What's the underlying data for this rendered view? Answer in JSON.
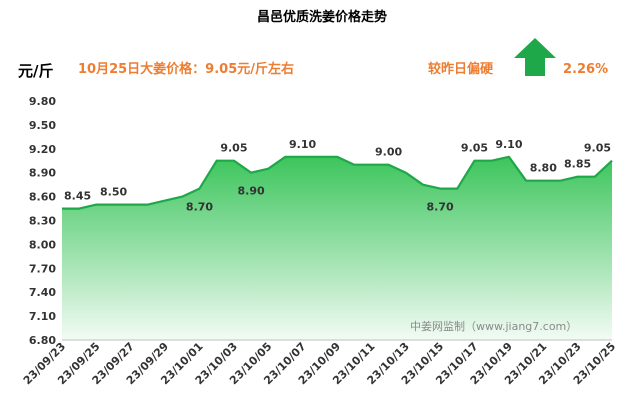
{
  "header": {
    "price_note": "10月25日大姜价格：9.05元/斤左右",
    "compare_label": "较昨日偏硬",
    "change_percent": "2.26%",
    "change_direction": "up-arrow-icon"
  },
  "watermark": "中姜网监制（www.jiang7.com）",
  "colors": {
    "accent_orange": "#ED7D31",
    "line_green": "#1EA84A",
    "fill_top": "#3CC55C",
    "fill_bottom": "#F2FBF4",
    "arrow_green": "#1EA84A"
  },
  "chart_data": {
    "type": "area",
    "title": "昌邑优质洗姜价格走势",
    "ylabel": "元/斤",
    "xlabel": "",
    "ylim": [
      6.8,
      9.8
    ],
    "y_ticks": [
      "9.80",
      "9.50",
      "9.20",
      "8.90",
      "8.60",
      "8.30",
      "8.00",
      "7.70",
      "7.40",
      "7.10",
      "6.80"
    ],
    "x_tick_labels": [
      "23/09/23",
      "23/09/25",
      "23/09/27",
      "23/09/29",
      "23/10/01",
      "23/10/03",
      "23/10/05",
      "23/10/07",
      "23/10/09",
      "23/10/11",
      "23/10/13",
      "23/10/15",
      "23/10/17",
      "23/10/19",
      "23/10/21",
      "23/10/23",
      "23/10/25"
    ],
    "grid": false,
    "x": [
      "23/09/23",
      "23/09/24",
      "23/09/25",
      "23/09/26",
      "23/09/27",
      "23/09/28",
      "23/09/29",
      "23/09/30",
      "23/10/01",
      "23/10/02",
      "23/10/03",
      "23/10/04",
      "23/10/05",
      "23/10/06",
      "23/10/07",
      "23/10/08",
      "23/10/09",
      "23/10/10",
      "23/10/11",
      "23/10/12",
      "23/10/13",
      "23/10/14",
      "23/10/15",
      "23/10/16",
      "23/10/17",
      "23/10/18",
      "23/10/19",
      "23/10/20",
      "23/10/21",
      "23/10/22",
      "23/10/23",
      "23/10/24",
      "23/10/25"
    ],
    "values": [
      8.45,
      8.45,
      8.5,
      8.5,
      8.5,
      8.5,
      8.55,
      8.6,
      8.7,
      9.05,
      9.05,
      8.9,
      8.95,
      9.1,
      9.1,
      9.1,
      9.1,
      9.0,
      9.0,
      9.0,
      8.9,
      8.75,
      8.7,
      8.7,
      9.05,
      9.05,
      9.1,
      8.8,
      8.8,
      8.8,
      8.85,
      8.85,
      9.05
    ],
    "data_labels": [
      {
        "x": "23/09/23",
        "text": "8.45"
      },
      {
        "x": "23/09/26",
        "text": "8.50"
      },
      {
        "x": "23/10/01",
        "text": "8.70"
      },
      {
        "x": "23/10/03",
        "text": "9.05"
      },
      {
        "x": "23/10/04",
        "text": "8.90"
      },
      {
        "x": "23/10/07",
        "text": "9.10"
      },
      {
        "x": "23/10/12",
        "text": "9.00"
      },
      {
        "x": "23/10/15",
        "text": "8.70"
      },
      {
        "x": "23/10/17",
        "text": "9.05"
      },
      {
        "x": "23/10/19",
        "text": "9.10"
      },
      {
        "x": "23/10/21",
        "text": "8.80"
      },
      {
        "x": "23/10/23",
        "text": "8.85"
      },
      {
        "x": "23/10/25",
        "text": "9.05"
      }
    ]
  }
}
